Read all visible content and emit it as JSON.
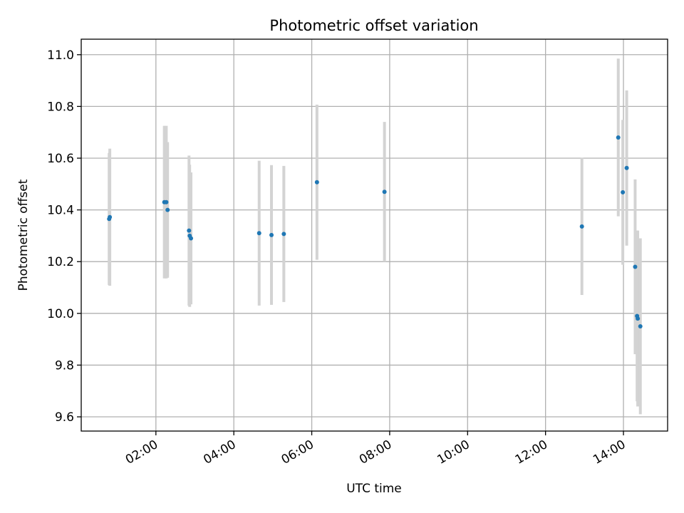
{
  "chart_data": {
    "type": "scatter",
    "title": "Photometric offset variation",
    "xlabel": "UTC time",
    "ylabel": "Photometric offset",
    "x_unit": "hours (UTC)",
    "xlim": [
      "00:05",
      "15:08"
    ],
    "ylim": [
      9.545,
      11.06
    ],
    "x_ticks": [
      {
        "label": "02:00",
        "t": "02:00"
      },
      {
        "label": "04:00",
        "t": "04:00"
      },
      {
        "label": "06:00",
        "t": "06:00"
      },
      {
        "label": "08:00",
        "t": "08:00"
      },
      {
        "label": "10:00",
        "t": "10:00"
      },
      {
        "label": "12:00",
        "t": "12:00"
      },
      {
        "label": "14:00",
        "t": "14:00"
      }
    ],
    "y_ticks": [
      {
        "label": "9.6",
        "v": 9.6
      },
      {
        "label": "9.8",
        "v": 9.8
      },
      {
        "label": "10.0",
        "v": 10.0
      },
      {
        "label": "10.2",
        "v": 10.2
      },
      {
        "label": "10.4",
        "v": 10.4
      },
      {
        "label": "10.6",
        "v": 10.6
      },
      {
        "label": "10.8",
        "v": 10.8
      },
      {
        "label": "11.0",
        "v": 11.0
      }
    ],
    "grid": true,
    "legend": null,
    "colors": {
      "marker": "#1f77b4",
      "errorbar": "#d3d3d3",
      "grid": "#b0b0b0"
    },
    "series": [
      {
        "points": [
          {
            "t": "00:48",
            "y": 10.365,
            "err": 0.255
          },
          {
            "t": "00:49",
            "y": 10.372,
            "err": 0.265
          },
          {
            "t": "02:13",
            "y": 10.43,
            "err": 0.295
          },
          {
            "t": "02:16",
            "y": 10.43,
            "err": 0.295
          },
          {
            "t": "02:18",
            "y": 10.4,
            "err": 0.262
          },
          {
            "t": "02:51",
            "y": 10.32,
            "err": 0.29
          },
          {
            "t": "02:52",
            "y": 10.3,
            "err": 0.275
          },
          {
            "t": "02:54",
            "y": 10.29,
            "err": 0.255
          },
          {
            "t": "04:39",
            "y": 10.31,
            "err": 0.28
          },
          {
            "t": "04:58",
            "y": 10.303,
            "err": 0.27
          },
          {
            "t": "05:17",
            "y": 10.307,
            "err": 0.263
          },
          {
            "t": "06:08",
            "y": 10.507,
            "err": 0.3
          },
          {
            "t": "07:52",
            "y": 10.47,
            "err": 0.27
          },
          {
            "t": "12:56",
            "y": 10.336,
            "err": 0.265
          },
          {
            "t": "13:52",
            "y": 10.68,
            "err": 0.305
          },
          {
            "t": "13:59",
            "y": 10.468,
            "err": 0.28
          },
          {
            "t": "14:05",
            "y": 10.562,
            "err": 0.3
          },
          {
            "t": "14:18",
            "y": 10.18,
            "err": 0.338
          },
          {
            "t": "14:21",
            "y": 9.99,
            "err": 0.33
          },
          {
            "t": "14:22",
            "y": 9.98,
            "err": 0.34
          },
          {
            "t": "14:26",
            "y": 9.95,
            "err": 0.34
          }
        ]
      }
    ]
  }
}
